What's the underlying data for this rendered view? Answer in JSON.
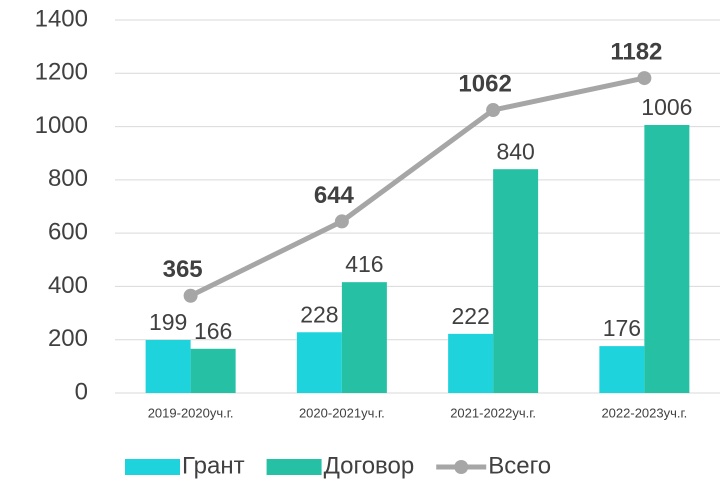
{
  "chart_data": {
    "type": "bar",
    "categories": [
      "2019-2020уч.г.",
      "2020-2021уч.г.",
      "2021-2022уч.г.",
      "2022-2023уч.г."
    ],
    "series": [
      {
        "name": "Грант",
        "type": "bar",
        "color": "#1fd3dc",
        "values": [
          199,
          228,
          222,
          176
        ]
      },
      {
        "name": "Договор",
        "type": "bar",
        "color": "#26c1a5",
        "values": [
          166,
          416,
          840,
          1006
        ]
      },
      {
        "name": "Всего",
        "type": "line",
        "color": "#a6a6a6",
        "values": [
          365,
          644,
          1062,
          1182
        ]
      }
    ],
    "ylim": [
      0,
      1400
    ],
    "yticks": [
      0,
      200,
      400,
      600,
      800,
      1000,
      1200,
      1400
    ],
    "grid": true,
    "legend": "bottom"
  }
}
